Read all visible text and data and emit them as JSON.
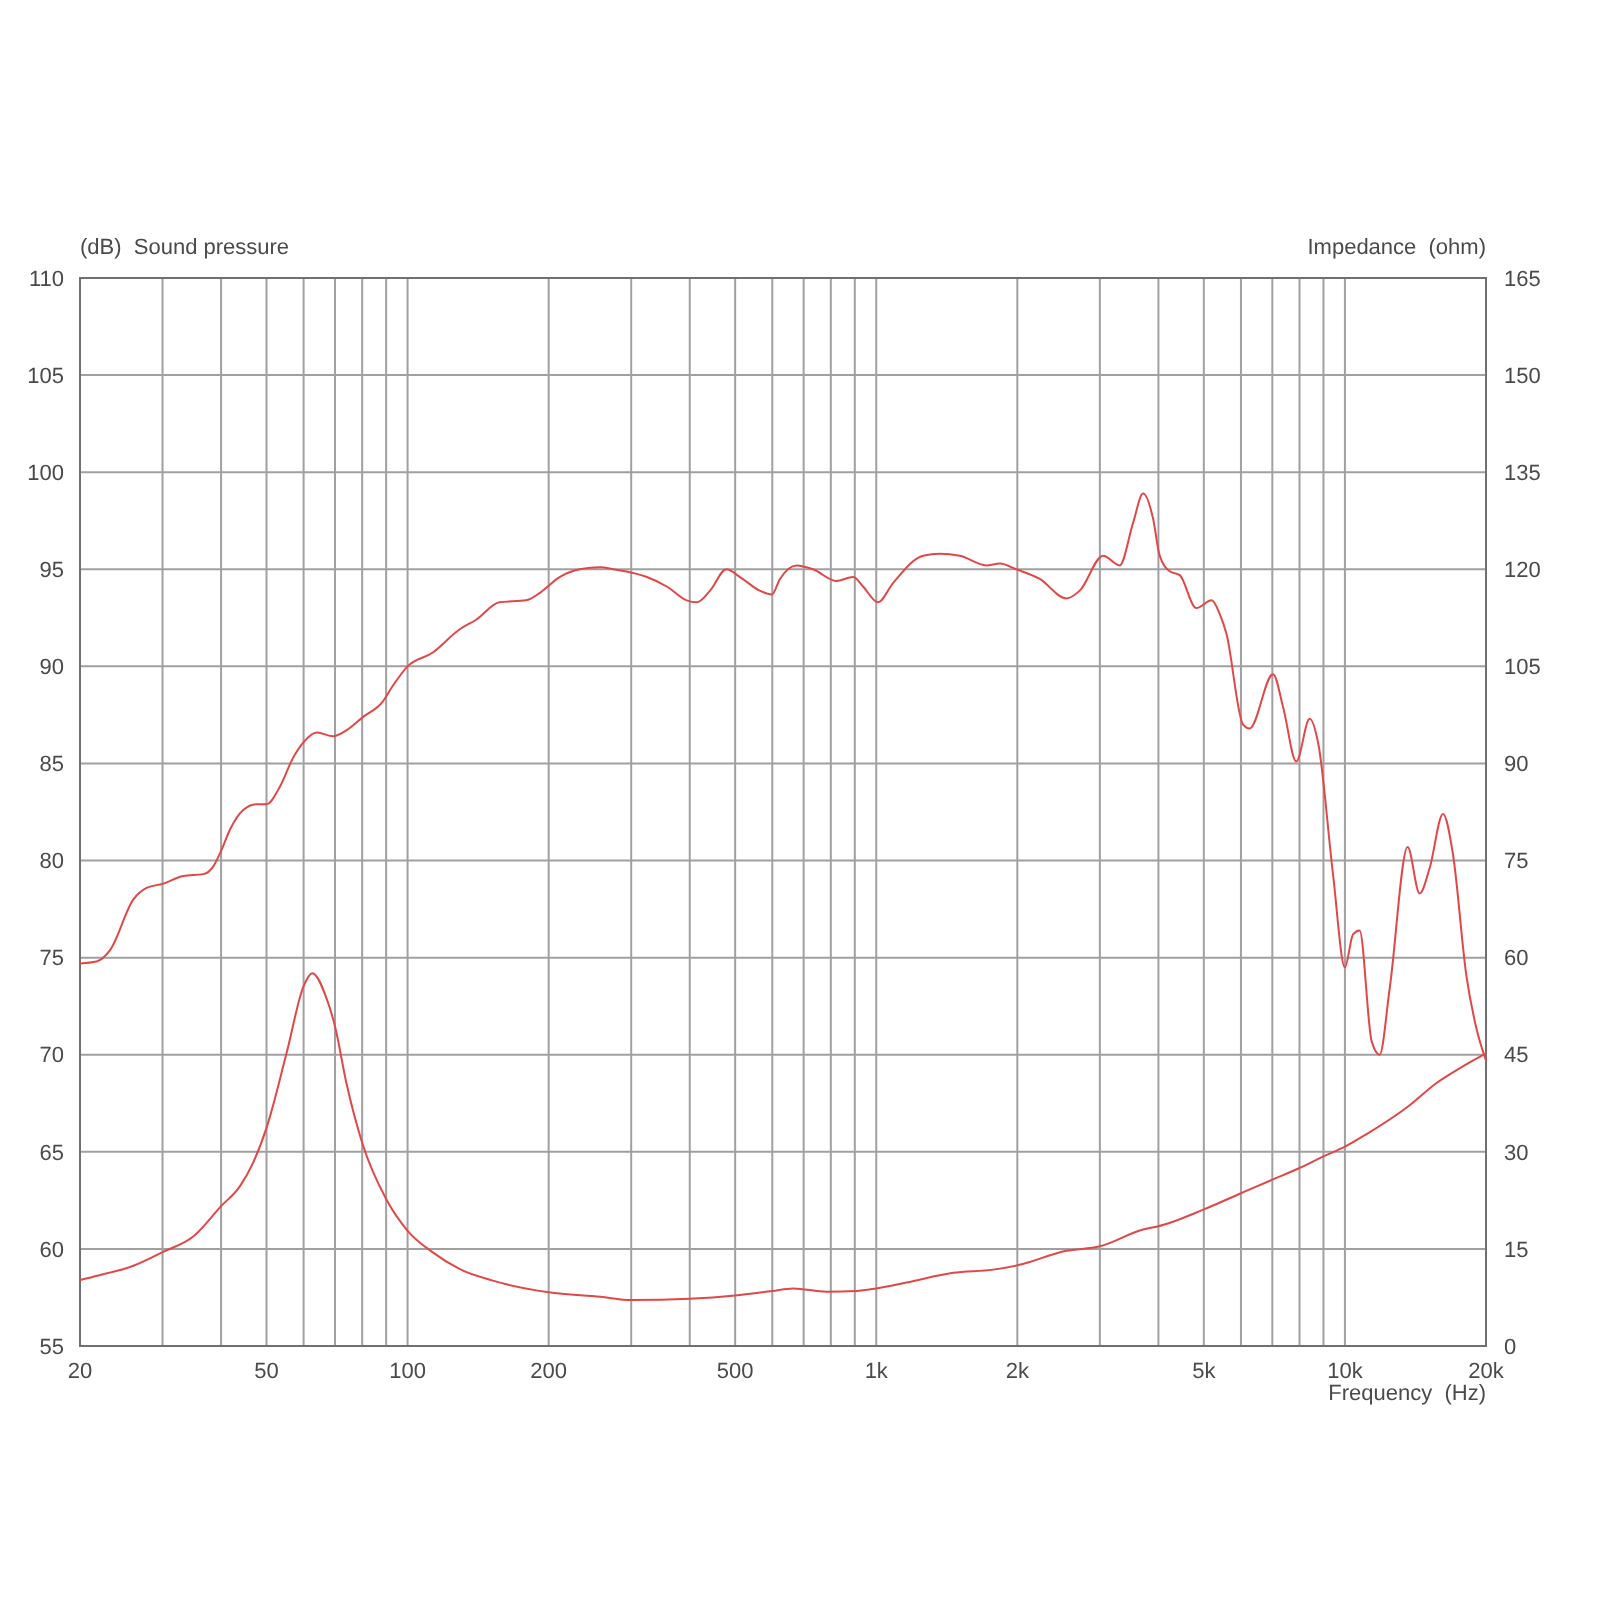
{
  "chart_data": {
    "type": "line",
    "xlabel": "Frequency  (Hz)",
    "ylabel": "(dB)  Sound pressure",
    "y2label": "Impedance  (ohm)",
    "log": "x",
    "grid": true,
    "xlim": [
      20,
      20000
    ],
    "xticks": [
      20,
      {
        "value": 30,
        "label": null
      },
      {
        "value": 40,
        "label": null
      },
      50,
      {
        "value": 60,
        "label": null
      },
      {
        "value": 70,
        "label": null
      },
      {
        "value": 80,
        "label": null
      },
      {
        "value": 90,
        "label": null
      },
      100,
      200,
      {
        "value": 300,
        "label": null
      },
      {
        "value": 400,
        "label": null
      },
      500,
      {
        "value": 600,
        "label": null
      },
      {
        "value": 700,
        "label": null
      },
      {
        "value": 800,
        "label": null
      },
      {
        "value": 900,
        "label": null
      },
      {
        "value": 1000,
        "label": "1k"
      },
      {
        "value": 2000,
        "label": "2k"
      },
      {
        "value": 3000,
        "label": null
      },
      {
        "value": 4000,
        "label": null
      },
      {
        "value": 5000,
        "label": "5k"
      },
      {
        "value": 6000,
        "label": null
      },
      {
        "value": 7000,
        "label": null
      },
      {
        "value": 8000,
        "label": null
      },
      {
        "value": 9000,
        "label": null
      },
      {
        "value": 10000,
        "label": "10k"
      },
      {
        "value": 20000,
        "label": "20k"
      }
    ],
    "ylim": [
      55,
      110
    ],
    "yticks": [
      55,
      60,
      65,
      70,
      75,
      80,
      85,
      90,
      95,
      100,
      105,
      110
    ],
    "y2lim": [
      0,
      165
    ],
    "y2ticks": [
      0,
      15,
      30,
      45,
      60,
      75,
      90,
      105,
      120,
      135,
      150,
      165
    ],
    "series": [
      {
        "color": "#e04848",
        "x": [
          20,
          21.7,
          23.2,
          26,
          27.8,
          30,
          33.2,
          36.7,
          38.5,
          40,
          41.8,
          44.6,
          47.6,
          50,
          53.4,
          57,
          60,
          64,
          69.4,
          74,
          80.4,
          88.6,
          93,
          100,
          113,
          129,
          140,
          157,
          179,
          192,
          211,
          233,
          258,
          275,
          304,
          324,
          358,
          394,
          414,
          442,
          479,
          512,
          564,
          599,
          623,
          676,
          733,
          822,
          893,
          938,
          1008,
          1087,
          1259,
          1366,
          1507,
          1718,
          1835,
          1990,
          2233,
          2545,
          2718,
          3048,
          3307,
          3533,
          3709,
          3897,
          4025,
          4228,
          4442,
          4818,
          5198,
          5405,
          5584,
          6062,
          6262,
          7025,
          7382,
          7875,
          8410,
          8776,
          9431,
          10000,
          10406,
          10748,
          11402,
          11860,
          12459,
          13609,
          14434,
          15160,
          16190,
          17010,
          18155,
          19060,
          20000
        ],
        "values": [
          74.7,
          74.8,
          75.4,
          78.0,
          78.6,
          78.8,
          79.2,
          79.3,
          79.7,
          80.5,
          81.6,
          82.6,
          82.9,
          82.9,
          83.8,
          85.3,
          86.1,
          86.6,
          86.4,
          86.7,
          87.4,
          88.2,
          89.0,
          90.0,
          90.7,
          91.9,
          92.4,
          93.3,
          93.4,
          93.8,
          94.6,
          95.0,
          95.1,
          95.0,
          94.8,
          94.6,
          94.1,
          93.4,
          93.3,
          93.9,
          95.0,
          94.6,
          93.9,
          93.7,
          94.5,
          95.2,
          95.0,
          94.4,
          94.6,
          94.1,
          93.3,
          94.3,
          95.7,
          95.8,
          95.7,
          95.2,
          95.3,
          95.0,
          94.5,
          93.5,
          93.9,
          95.7,
          95.2,
          97.4,
          98.9,
          97.6,
          95.7,
          94.9,
          94.7,
          93.0,
          93.4,
          92.7,
          91.7,
          87.0,
          86.8,
          89.6,
          87.9,
          85.1,
          87.3,
          86.0,
          79.3,
          74.5,
          76.2,
          76.4,
          70.7,
          70.0,
          73.4,
          80.7,
          78.3,
          79.6,
          82.4,
          80.3,
          74.1,
          71.4,
          69.7
        ]
      },
      {
        "color": "#e04848",
        "axis": "y2",
        "x": [
          20,
          21.9,
          26,
          30,
          35,
          40,
          43.9,
          46.8,
          50,
          55.2,
          60,
          62.6,
          67.3,
          70,
          74,
          80,
          90,
          100,
          113,
          129,
          152,
          200,
          258,
          300,
          400,
          500,
          600,
          665,
          783,
          907,
          1000,
          1160,
          1460,
          1775,
          2010,
          2545,
          3000,
          3709,
          4000,
          5000,
          6000,
          7000,
          8000,
          9000,
          10000,
          11100,
          13750,
          15660,
          17570,
          20000
        ],
        "values": [
          10.2,
          10.9,
          12.4,
          14.5,
          17.0,
          21.6,
          24.7,
          28.3,
          33.7,
          45.3,
          55.6,
          57.6,
          53.5,
          49.4,
          40.7,
          31.4,
          22.7,
          17.8,
          14.5,
          11.9,
          10.1,
          8.3,
          7.6,
          7.1,
          7.3,
          7.8,
          8.5,
          8.9,
          8.4,
          8.5,
          8.9,
          9.8,
          11.3,
          11.8,
          12.5,
          14.7,
          15.4,
          18.0,
          18.5,
          21.1,
          23.6,
          25.7,
          27.5,
          29.3,
          30.8,
          32.7,
          37.2,
          40.6,
          42.9,
          45.2
        ]
      }
    ]
  }
}
